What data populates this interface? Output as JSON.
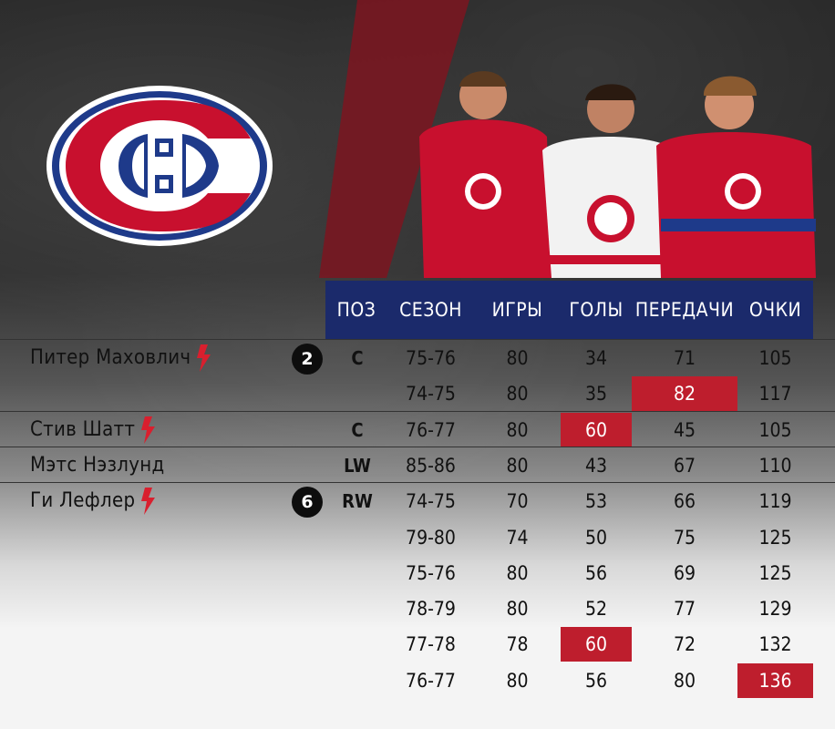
{
  "colors": {
    "header": "#1b2a6b",
    "highlight": "#be1e2d",
    "accent_red": "#c8102e"
  },
  "team_logo": {
    "icon": "montreal-canadiens-logo"
  },
  "headers": [
    "ПОЗ",
    "СЕЗОН",
    "ИГРЫ",
    "ГОЛЫ",
    "ПЕРЕДАЧИ",
    "ОЧКИ"
  ],
  "players": [
    {
      "name": "Питер Маховлич",
      "bolt": true,
      "badge": "2",
      "position": "C",
      "seasons": [
        {
          "season": "75-76",
          "games": "80",
          "goals": "34",
          "assists": "71",
          "points": "105"
        },
        {
          "season": "74-75",
          "games": "80",
          "goals": "35",
          "assists": "82",
          "points": "117"
        }
      ]
    },
    {
      "name": "Стив Шатт",
      "bolt": true,
      "badge": "",
      "position": "C",
      "seasons": [
        {
          "season": "76-77",
          "games": "80",
          "goals": "60",
          "assists": "45",
          "points": "105"
        }
      ]
    },
    {
      "name": "Мэтс Нэзлунд",
      "bolt": false,
      "badge": "",
      "position": "LW",
      "seasons": [
        {
          "season": "85-86",
          "games": "80",
          "goals": "43",
          "assists": "67",
          "points": "110"
        }
      ]
    },
    {
      "name": "Ги Лефлер",
      "bolt": true,
      "badge": "6",
      "position": "RW",
      "seasons": [
        {
          "season": "74-75",
          "games": "70",
          "goals": "53",
          "assists": "66",
          "points": "119"
        },
        {
          "season": "79-80",
          "games": "74",
          "goals": "50",
          "assists": "75",
          "points": "125"
        },
        {
          "season": "75-76",
          "games": "80",
          "goals": "56",
          "assists": "69",
          "points": "125"
        },
        {
          "season": "78-79",
          "games": "80",
          "goals": "52",
          "assists": "77",
          "points": "129"
        },
        {
          "season": "77-78",
          "games": "78",
          "goals": "60",
          "assists": "72",
          "points": "132"
        },
        {
          "season": "76-77",
          "games": "80",
          "goals": "56",
          "assists": "80",
          "points": "136"
        }
      ]
    }
  ],
  "highlights": [
    {
      "player": 0,
      "season": 1,
      "field": "assists"
    },
    {
      "player": 1,
      "season": 0,
      "field": "goals"
    },
    {
      "player": 3,
      "season": 4,
      "field": "goals"
    },
    {
      "player": 3,
      "season": 5,
      "field": "points"
    }
  ]
}
